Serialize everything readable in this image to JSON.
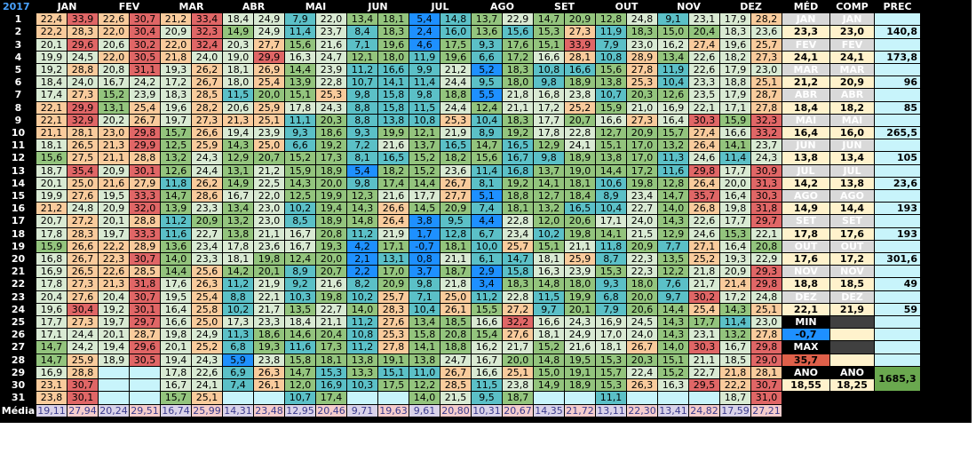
{
  "year": "2017",
  "months": [
    "JAN",
    "FEV",
    "MAR",
    "ABR",
    "MAI",
    "JUN",
    "JUL",
    "AGO",
    "SET",
    "OUT",
    "NOV",
    "DEZ"
  ],
  "summary_headers": {
    "med": "MÉD",
    "comp": "COMP",
    "prec": "PREC"
  },
  "media_label": "Média",
  "days": [
    "1",
    "2",
    "3",
    "4",
    "5",
    "6",
    "7",
    "8",
    "9",
    "10",
    "11",
    "12",
    "13",
    "14",
    "15",
    "16",
    "17",
    "18",
    "19",
    "20",
    "21",
    "22",
    "23",
    "24",
    "25",
    "26",
    "27",
    "28",
    "29",
    "30",
    "31"
  ],
  "min_data": [
    [
      "22,4",
      "22,6",
      "21,2",
      "18,4",
      "7,9",
      "13,4",
      "5,4",
      "13,7",
      "14,7",
      "12,8",
      "9,1",
      "17,9"
    ],
    [
      "22,2",
      "22,0",
      "20,9",
      "14,9",
      "11,4",
      "8,4",
      "2,4",
      "13,6",
      "15,3",
      "11,9",
      "15,0",
      "18,3"
    ],
    [
      "20,1",
      "20,6",
      "22,0",
      "20,3",
      "15,6",
      "7,1",
      "4,6",
      "9,3",
      "15,1",
      "7,9",
      "16,2",
      "19,6"
    ],
    [
      "19,9",
      "22,0",
      "21,8",
      "19,0",
      "16,3",
      "12,1",
      "11,9",
      "6,6",
      "16,6",
      "10,8",
      "13,4",
      "18,2"
    ],
    [
      "19,2",
      "20,8",
      "19,3",
      "18,1",
      "14,4",
      "11,2",
      "9,9",
      "5,2",
      "10,8",
      "15,6",
      "11,9",
      "17,9"
    ],
    [
      "18,4",
      "16,7",
      "17,2",
      "18,0",
      "13,9",
      "10,7",
      "11,4",
      "9,5",
      "9,8",
      "13,8",
      "10,4",
      "18,8"
    ],
    [
      "17,4",
      "15,2",
      "18,3",
      "11,5",
      "15,1",
      "9,8",
      "9,8",
      "5,5",
      "16,8",
      "10,7",
      "12,6",
      "17,9"
    ],
    [
      "22,1",
      "13,1",
      "19,6",
      "20,6",
      "17,8",
      "8,8",
      "11,5",
      "12,4",
      "17,2",
      "15,9",
      "16,9",
      "17,1"
    ],
    [
      "22,1",
      "20,2",
      "19,7",
      "21,3",
      "11,1",
      "8,8",
      "10,8",
      "10,4",
      "17,7",
      "16,6",
      "16,4",
      "15,9"
    ],
    [
      "21,1",
      "23,0",
      "15,7",
      "19,4",
      "9,3",
      "9,3",
      "12,1",
      "8,9",
      "17,8",
      "12,7",
      "15,7",
      "16,6"
    ],
    [
      "18,1",
      "21,3",
      "12,5",
      "14,3",
      "6,6",
      "7,2",
      "13,7",
      "14,7",
      "12,9",
      "15,1",
      "13,2",
      "14,1"
    ],
    [
      "15,6",
      "21,1",
      "13,2",
      "12,9",
      "15,2",
      "8,1",
      "15,2",
      "15,6",
      "9,8",
      "13,8",
      "11,3",
      "11,4"
    ],
    [
      "18,7",
      "20,9",
      "12,6",
      "13,1",
      "15,9",
      "5,4",
      "15,2",
      "11,4",
      "13,7",
      "14,4",
      "11,6",
      "17,7"
    ],
    [
      "20,1",
      "21,6",
      "11,8",
      "14,9",
      "14,3",
      "9,8",
      "14,4",
      "8,1",
      "14,1",
      "10,6",
      "12,8",
      "20,0"
    ],
    [
      "19,9",
      "19,5",
      "14,7",
      "16,7",
      "12,5",
      "12,3",
      "17,7",
      "5,1",
      "12,7",
      "8,9",
      "14,7",
      "16,4"
    ],
    [
      "21,2",
      "20,9",
      "13,9",
      "13,4",
      "10,2",
      "14,3",
      "14,5",
      "7,4",
      "13,2",
      "10,4",
      "14,0",
      "19,8"
    ],
    [
      "20,7",
      "20,1",
      "11,2",
      "13,2",
      "8,5",
      "14,8",
      "3,8",
      "4,4",
      "12,0",
      "17,1",
      "14,3",
      "17,7"
    ],
    [
      "17,8",
      "19,7",
      "11,6",
      "13,8",
      "16,7",
      "11,2",
      "1,7",
      "6,7",
      "10,2",
      "14,1",
      "12,9",
      "15,3"
    ],
    [
      "15,9",
      "22,2",
      "13,6",
      "17,8",
      "16,7",
      "4,2",
      "-0,7",
      "10,0",
      "15,1",
      "11,8",
      "7,7",
      "16,4"
    ],
    [
      "16,8",
      "22,3",
      "14,0",
      "18,1",
      "12,4",
      "2,1",
      "0,8",
      "6,1",
      "18,1",
      "8,7",
      "13,5",
      "19,3"
    ],
    [
      "16,9",
      "22,6",
      "14,4",
      "14,2",
      "8,9",
      "2,2",
      "3,7",
      "2,9",
      "16,3",
      "15,3",
      "12,2",
      "20,9"
    ],
    [
      "17,8",
      "21,3",
      "17,6",
      "11,2",
      "9,2",
      "8,2",
      "9,8",
      "3,4",
      "14,8",
      "9,3",
      "7,6",
      "21,4"
    ],
    [
      "20,4",
      "20,4",
      "19,5",
      "8,8",
      "10,3",
      "10,2",
      "7,1",
      "11,2",
      "11,5",
      "6,8",
      "9,7",
      "17,2"
    ],
    [
      "19,6",
      "19,2",
      "16,4",
      "10,2",
      "13,5",
      "14,0",
      "10,4",
      "15,5",
      "9,7",
      "7,9",
      "14,4",
      "14,3"
    ],
    [
      "17,7",
      "19,7",
      "16,6",
      "17,3",
      "18,4",
      "11,2",
      "13,4",
      "16,6",
      "16,6",
      "16,9",
      "14,3",
      "11,4"
    ],
    [
      "17,1",
      "20,1",
      "19,8",
      "11,3",
      "14,6",
      "10,8",
      "15,8",
      "15,4",
      "18,1",
      "17,0",
      "14,3",
      "13,2"
    ],
    [
      "14,7",
      "19,4",
      "20,1",
      "6,8",
      "11,6",
      "11,2",
      "14,1",
      "16,2",
      "15,2",
      "18,1",
      "14,0",
      "16,7"
    ],
    [
      "14,7",
      "18,9",
      "19,4",
      "5,9",
      "15,8",
      "13,8",
      "13,8",
      "16,7",
      "14,8",
      "15,3",
      "15,1",
      "18,5"
    ],
    [
      "16,9",
      "",
      "17,8",
      "6,9",
      "14,7",
      "13,3",
      "11,0",
      "16,6",
      "15,0",
      "15,7",
      "15,2",
      "21,8"
    ],
    [
      "23,1",
      "",
      "16,7",
      "7,4",
      "12,0",
      "10,3",
      "12,2",
      "11,5",
      "14,9",
      "15,3",
      "16,3",
      "22,2"
    ],
    [
      "23,8",
      "",
      "15,7",
      "",
      "10,7",
      "",
      "14,0",
      "9,5",
      "",
      "11,1",
      "",
      "18,7"
    ]
  ],
  "max_data": [
    [
      "33,9",
      "30,7",
      "33,4",
      "24,9",
      "22,0",
      "18,1",
      "14,8",
      "22,9",
      "20,9",
      "24,8",
      "23,1",
      "28,2"
    ],
    [
      "28,3",
      "30,4",
      "32,3",
      "24,9",
      "23,7",
      "18,3",
      "16,0",
      "15,6",
      "27,3",
      "18,3",
      "20,4",
      "23,6"
    ],
    [
      "29,6",
      "30,2",
      "32,4",
      "27,7",
      "21,6",
      "19,6",
      "17,5",
      "17,6",
      "33,9",
      "23,0",
      "27,4",
      "25,7"
    ],
    [
      "24,5",
      "30,5",
      "24,0",
      "29,9",
      "24,7",
      "18,0",
      "19,6",
      "17,2",
      "28,1",
      "28,9",
      "22,6",
      "27,3"
    ],
    [
      "28,8",
      "31,1",
      "26,2",
      "26,9",
      "23,9",
      "16,6",
      "21,2",
      "18,3",
      "16,6",
      "27,8",
      "22,6",
      "23,0"
    ],
    [
      "24,0",
      "24,2",
      "26,7",
      "25,4",
      "22,8",
      "14,1",
      "24,4",
      "18,0",
      "18,9",
      "25,3",
      "23,3",
      "25,1"
    ],
    [
      "27,3",
      "23,9",
      "28,5",
      "20,0",
      "25,3",
      "15,8",
      "18,8",
      "21,8",
      "23,8",
      "20,3",
      "23,5",
      "28,7"
    ],
    [
      "29,9",
      "25,4",
      "28,2",
      "25,9",
      "24,3",
      "15,8",
      "24,4",
      "21,1",
      "25,2",
      "21,0",
      "22,1",
      "27,8"
    ],
    [
      "32,9",
      "26,7",
      "27,3",
      "25,1",
      "20,3",
      "13,8",
      "25,3",
      "18,3",
      "20,7",
      "27,3",
      "30,3",
      "32,3"
    ],
    [
      "28,1",
      "29,8",
      "26,6",
      "23,9",
      "18,6",
      "19,9",
      "21,9",
      "19,2",
      "22,8",
      "20,9",
      "27,4",
      "33,2"
    ],
    [
      "26,5",
      "29,9",
      "25,9",
      "25,0",
      "19,2",
      "21,6",
      "16,5",
      "16,5",
      "24,1",
      "17,0",
      "26,4",
      "23,7"
    ],
    [
      "27,5",
      "28,8",
      "24,3",
      "20,7",
      "17,3",
      "16,5",
      "18,2",
      "16,7",
      "18,9",
      "17,0",
      "24,6",
      "24,3"
    ],
    [
      "35,4",
      "30,1",
      "24,4",
      "21,2",
      "18,9",
      "18,2",
      "23,6",
      "16,8",
      "19,0",
      "17,2",
      "29,8",
      "30,9"
    ],
    [
      "25,0",
      "27,9",
      "26,2",
      "22,5",
      "20,0",
      "17,4",
      "26,7",
      "19,2",
      "18,1",
      "19,8",
      "26,4",
      "31,3"
    ],
    [
      "27,6",
      "33,3",
      "28,6",
      "22,0",
      "19,9",
      "21,6",
      "27,7",
      "18,8",
      "18,4",
      "23,4",
      "35,7",
      "30,3"
    ],
    [
      "24,8",
      "32,0",
      "23,3",
      "23,0",
      "19,4",
      "26,6",
      "20,9",
      "18,1",
      "16,5",
      "22,7",
      "26,8",
      "31,8"
    ],
    [
      "27,2",
      "28,8",
      "20,9",
      "23,0",
      "18,9",
      "26,4",
      "9,5",
      "22,8",
      "20,6",
      "24,0",
      "22,6",
      "29,7"
    ],
    [
      "28,3",
      "33,3",
      "22,7",
      "21,1",
      "20,8",
      "21,9",
      "12,8",
      "23,4",
      "19,8",
      "21,5",
      "24,6",
      "22,1"
    ],
    [
      "26,6",
      "28,9",
      "23,4",
      "23,6",
      "19,3",
      "17,1",
      "18,1",
      "25,7",
      "21,1",
      "20,9",
      "27,1",
      "20,8"
    ],
    [
      "26,7",
      "30,7",
      "23,3",
      "19,8",
      "20,0",
      "13,1",
      "21,1",
      "14,7",
      "25,9",
      "22,3",
      "25,2",
      "22,9"
    ],
    [
      "26,5",
      "28,5",
      "25,6",
      "20,1",
      "20,7",
      "17,0",
      "18,7",
      "15,8",
      "23,9",
      "22,3",
      "21,8",
      "29,3"
    ],
    [
      "27,3",
      "31,8",
      "26,3",
      "21,9",
      "21,6",
      "20,9",
      "21,8",
      "18,3",
      "18,0",
      "18,0",
      "21,7",
      "29,8"
    ],
    [
      "27,6",
      "30,7",
      "25,4",
      "22,1",
      "19,8",
      "25,7",
      "25,0",
      "22,8",
      "19,9",
      "20,0",
      "30,2",
      "24,8"
    ],
    [
      "30,4",
      "30,1",
      "25,8",
      "21,7",
      "22,7",
      "28,3",
      "26,1",
      "27,2",
      "20,1",
      "20,6",
      "25,4",
      "25,1"
    ],
    [
      "27,3",
      "29,7",
      "25,0",
      "23,3",
      "21,1",
      "27,6",
      "18,5",
      "32,2",
      "24,3",
      "24,5",
      "17,7",
      "23,0"
    ],
    [
      "24,4",
      "28,7",
      "24,9",
      "18,6",
      "20,4",
      "25,3",
      "20,8",
      "27,6",
      "24,9",
      "24,0",
      "23,1",
      "27,8"
    ],
    [
      "24,2",
      "29,6",
      "25,2",
      "19,3",
      "17,3",
      "27,8",
      "18,8",
      "21,7",
      "21,6",
      "26,7",
      "30,3",
      "29,8"
    ],
    [
      "25,9",
      "30,5",
      "24,3",
      "23,8",
      "18,1",
      "19,1",
      "24,7",
      "20,0",
      "19,5",
      "20,3",
      "21,1",
      "29,0"
    ],
    [
      "28,8",
      "",
      "22,6",
      "26,3",
      "15,3",
      "15,1",
      "26,7",
      "25,1",
      "19,1",
      "22,4",
      "22,7",
      "28,1"
    ],
    [
      "30,7",
      "",
      "24,1",
      "26,1",
      "16,9",
      "17,5",
      "28,5",
      "23,8",
      "18,9",
      "26,3",
      "29,5",
      "30,7"
    ],
    [
      "30,1",
      "",
      "25,1",
      "",
      "17,4",
      "",
      "21,5",
      "18,7",
      "",
      "",
      "",
      "31,0"
    ]
  ],
  "media": [
    [
      "19,11",
      "27,94"
    ],
    [
      "20,24",
      "29,51"
    ],
    [
      "16,74",
      "25,99"
    ],
    [
      "14,31",
      "23,48"
    ],
    [
      "12,95",
      "20,46"
    ],
    [
      "9,71",
      "19,63"
    ],
    [
      "9,61",
      "20,80"
    ],
    [
      "10,31",
      "20,67"
    ],
    [
      "14,35",
      "21,72"
    ],
    [
      "13,11",
      "22,30"
    ],
    [
      "13,41",
      "24,82"
    ],
    [
      "17,59",
      "27,21"
    ]
  ],
  "summary": [
    {
      "label_med": "JAN",
      "label_comp": "JAN",
      "med": "23,3",
      "comp": "23,0",
      "prec": "140,8"
    },
    {
      "label_med": "FEV",
      "label_comp": "FEV",
      "med": "24,1",
      "comp": "24,1",
      "prec": "173,8"
    },
    {
      "label_med": "MAR",
      "label_comp": "MAR",
      "med": "21,2",
      "comp": "20,9",
      "prec": "96"
    },
    {
      "label_med": "ABR",
      "label_comp": "ABR",
      "med": "18,4",
      "comp": "18,2",
      "prec": "85"
    },
    {
      "label_med": "MAI",
      "label_comp": "MAI",
      "med": "16,4",
      "comp": "16,0",
      "prec": "265,5"
    },
    {
      "label_med": "JUN",
      "label_comp": "JUN",
      "med": "13,8",
      "comp": "13,4",
      "prec": "105"
    },
    {
      "label_med": "JUL",
      "label_comp": "JUL",
      "med": "14,2",
      "comp": "13,8",
      "prec": "23,6"
    },
    {
      "label_med": "AGO",
      "label_comp": "AGO",
      "med": "14,9",
      "comp": "14,4",
      "prec": "193"
    },
    {
      "label_med": "SET",
      "label_comp": "SET",
      "med": "17,8",
      "comp": "17,6",
      "prec": "193"
    },
    {
      "label_med": "OUT",
      "label_comp": "OUT",
      "med": "17,6",
      "comp": "17,2",
      "prec": "301,6"
    },
    {
      "label_med": "NOV",
      "label_comp": "NOV",
      "med": "18,8",
      "comp": "18,5",
      "prec": "49"
    },
    {
      "label_med": "DEZ",
      "label_comp": "DEZ",
      "med": "22,1",
      "comp": "21,9",
      "prec": "59"
    }
  ],
  "extremes": {
    "min_label": "MIN",
    "min_value": "-0,7",
    "max_label": "MAX",
    "max_value": "35,7",
    "ano_label_med": "ANO",
    "ano_label_comp": "ANO",
    "ano_med": "18,55",
    "ano_comp": "18,25",
    "prec_total": "1685,3"
  },
  "colors": {
    "cold": "#1e90ff",
    "cool": "#5bc0c7",
    "mild": "#93c47d",
    "neutral": "#d9ead3",
    "warm": "#f9cb9c",
    "hot": "#e06666"
  }
}
